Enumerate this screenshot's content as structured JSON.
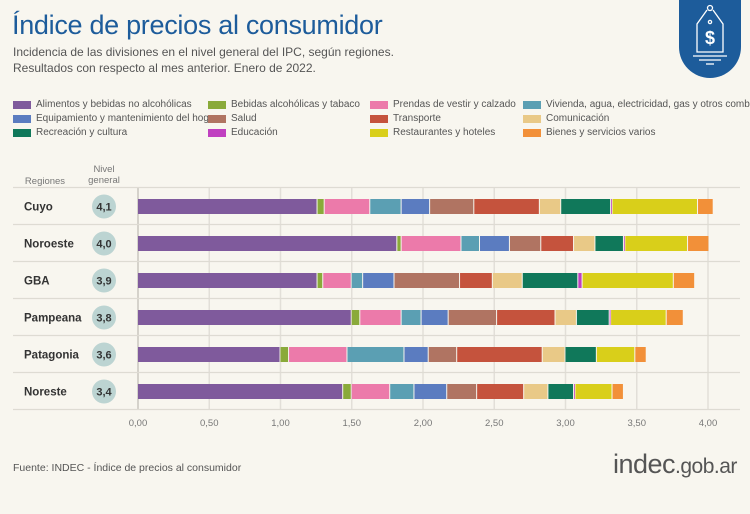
{
  "header": {
    "title": "Índice de precios al consumidor",
    "subtitle_1": "Incidencia de las divisiones en el nivel general del IPC, según regiones.",
    "subtitle_2": "Resultados con respecto al mes anterior. Enero de 2022."
  },
  "footer": {
    "source": "Fuente: INDEC - Índice de precios al consumidor",
    "brand_main": "indec",
    "brand_suffix": ".gob.ar"
  },
  "logo": {
    "icon": "price-tag-dollar-icon",
    "color": "#1d5c9b"
  },
  "chart_data": {
    "type": "bar",
    "orientation": "horizontal-stacked",
    "row_header": "Regiones",
    "total_header": "Nivel general",
    "categories": [
      "Cuyo",
      "Noroeste",
      "GBA",
      "Pampeana",
      "Patagonia",
      "Noreste"
    ],
    "totals": [
      "4,1",
      "4,0",
      "3,9",
      "3,8",
      "3,6",
      "3,4"
    ],
    "xlim": [
      0,
      4.0
    ],
    "xticks": [
      0,
      0.5,
      1,
      1.5,
      2,
      2.5,
      3,
      3.5,
      4
    ],
    "xtick_labels": [
      "0,00",
      "0,50",
      "1,00",
      "1,50",
      "2,00",
      "2,50",
      "3,00",
      "3,50",
      "4,00"
    ],
    "grid": true,
    "legend_position": "top",
    "series": [
      {
        "name": "Alimentos y bebidas no alcohólicas",
        "color": "#7f5a9c",
        "values": [
          1.26,
          1.82,
          1.26,
          1.5,
          1.0,
          1.44
        ]
      },
      {
        "name": "Bebidas alcohólicas y tabaco",
        "color": "#8aaa3a",
        "values": [
          0.05,
          0.03,
          0.04,
          0.06,
          0.06,
          0.06
        ]
      },
      {
        "name": "Prendas de vestir y calzado",
        "color": "#ec7aaa",
        "values": [
          0.32,
          0.42,
          0.2,
          0.29,
          0.41,
          0.27
        ]
      },
      {
        "name": "Vivienda, agua, electricidad, gas y otros combustibles",
        "color": "#5b9fb3",
        "values": [
          0.22,
          0.13,
          0.08,
          0.14,
          0.4,
          0.17
        ]
      },
      {
        "name": "Equipamiento y mantenimiento del hogar",
        "color": "#5b7cc0",
        "values": [
          0.2,
          0.21,
          0.22,
          0.19,
          0.17,
          0.23
        ]
      },
      {
        "name": "Salud",
        "color": "#b07462",
        "values": [
          0.31,
          0.22,
          0.46,
          0.34,
          0.2,
          0.21
        ]
      },
      {
        "name": "Transporte",
        "color": "#c5533d",
        "values": [
          0.46,
          0.23,
          0.23,
          0.41,
          0.6,
          0.33
        ]
      },
      {
        "name": "Comunicación",
        "color": "#e9c987",
        "values": [
          0.15,
          0.15,
          0.21,
          0.15,
          0.16,
          0.17
        ]
      },
      {
        "name": "Recreación y cultura",
        "color": "#10785a",
        "values": [
          0.35,
          0.2,
          0.39,
          0.23,
          0.22,
          0.18
        ]
      },
      {
        "name": "Educación",
        "color": "#c040c0",
        "values": [
          0.01,
          0.01,
          0.03,
          0.01,
          0.0,
          0.01
        ]
      },
      {
        "name": "Restaurantes y hoteles",
        "color": "#d9cf1a",
        "values": [
          0.6,
          0.44,
          0.64,
          0.39,
          0.27,
          0.26
        ]
      },
      {
        "name": "Bienes y servicios varios",
        "color": "#f29039",
        "values": [
          0.11,
          0.15,
          0.15,
          0.12,
          0.08,
          0.08
        ]
      }
    ]
  }
}
